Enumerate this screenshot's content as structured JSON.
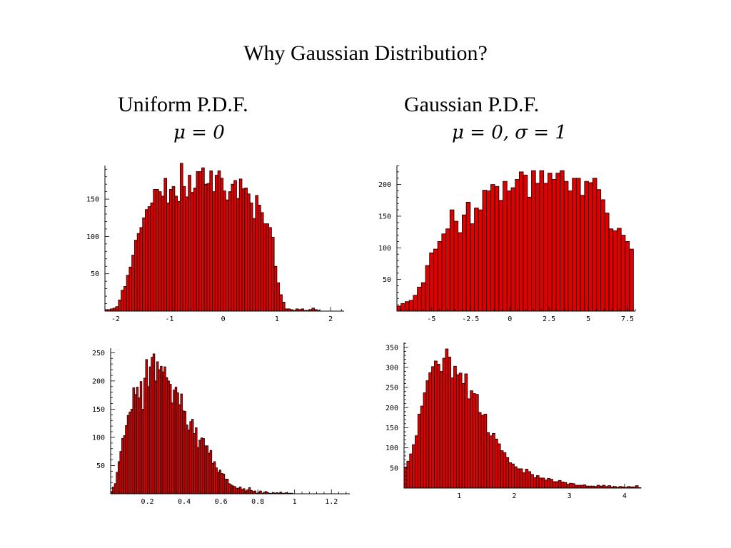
{
  "slide": {
    "title": "Why Gaussian Distribution?"
  },
  "columns": [
    {
      "title": "Uniform P.D.F.",
      "param": "μ = 0"
    },
    {
      "title": "Gaussian P.D.F.",
      "param": "μ = 0, σ = 1"
    }
  ],
  "colors": {
    "bar_fill": "#e00000",
    "bar_stroke": "#000000"
  },
  "chart_data": [
    {
      "id": "top-left",
      "type": "bar",
      "xlim": [
        -2.2,
        2.25
      ],
      "ylim": [
        0,
        195
      ],
      "xticks": [
        -2,
        -1,
        0,
        1,
        2
      ],
      "xtick_labels": [
        "-2",
        "-1",
        "0",
        "1",
        "2"
      ],
      "yticks": [
        50,
        100,
        150
      ],
      "ytick_labels": [
        "50",
        "100",
        "150"
      ],
      "bin_start": -2.2,
      "bin_width": 0.05,
      "values": [
        2,
        2,
        3,
        4,
        6,
        15,
        28,
        33,
        48,
        59,
        75,
        95,
        104,
        112,
        125,
        136,
        140,
        145,
        163,
        163,
        160,
        154,
        178,
        145,
        163,
        167,
        154,
        147,
        198,
        167,
        153,
        182,
        159,
        165,
        187,
        187,
        192,
        170,
        171,
        188,
        160,
        182,
        188,
        178,
        161,
        149,
        160,
        170,
        175,
        151,
        177,
        164,
        165,
        157,
        145,
        124,
        155,
        142,
        132,
        117,
        117,
        112,
        99,
        60,
        38,
        22,
        12,
        3,
        3,
        2,
        1,
        3,
        2,
        3,
        1,
        1,
        2,
        4,
        2,
        1
      ]
    },
    {
      "id": "top-right",
      "type": "bar",
      "xlim": [
        -7.2,
        8.0
      ],
      "ylim": [
        0,
        230
      ],
      "xticks": [
        -5,
        -2.5,
        0,
        2.5,
        5,
        7.5
      ],
      "xtick_labels": [
        "-5",
        "-2.5",
        "0",
        "2.5",
        "5",
        "7.5"
      ],
      "yticks": [
        50,
        100,
        150,
        200
      ],
      "ytick_labels": [
        "50",
        "100",
        "150",
        "200"
      ],
      "bin_start": -7.2,
      "bin_width": 0.26,
      "values": [
        8,
        12,
        15,
        17,
        25,
        38,
        45,
        72,
        92,
        98,
        110,
        122,
        130,
        160,
        142,
        124,
        152,
        172,
        138,
        163,
        160,
        191,
        190,
        200,
        197,
        175,
        205,
        190,
        195,
        208,
        220,
        215,
        180,
        222,
        202,
        222,
        202,
        218,
        208,
        218,
        222,
        205,
        190,
        210,
        210,
        183,
        205,
        203,
        210,
        192,
        176,
        155,
        130,
        127,
        131,
        120,
        110,
        98,
        96,
        65,
        53,
        35,
        25,
        22,
        8,
        5,
        5,
        3,
        2,
        1,
        2,
        3,
        2
      ]
    },
    {
      "id": "bottom-left",
      "type": "bar",
      "xlim": [
        0.0,
        1.3
      ],
      "ylim": [
        0,
        258
      ],
      "xticks": [
        0.2,
        0.4,
        0.6,
        0.8,
        1,
        1.2
      ],
      "xtick_labels": [
        "0.2",
        "0.4",
        "0.6",
        "0.8",
        "1",
        "1.2"
      ],
      "yticks": [
        50,
        100,
        150,
        200,
        250
      ],
      "ytick_labels": [
        "50",
        "100",
        "150",
        "200",
        "250"
      ],
      "bin_start": 0.0,
      "bin_width": 0.01,
      "values": [
        4,
        12,
        18,
        38,
        57,
        75,
        98,
        103,
        121,
        139,
        145,
        150,
        188,
        176,
        189,
        170,
        199,
        150,
        205,
        238,
        190,
        225,
        242,
        248,
        200,
        234,
        220,
        226,
        216,
        225,
        206,
        200,
        194,
        161,
        184,
        189,
        179,
        158,
        177,
        147,
        146,
        122,
        113,
        128,
        132,
        107,
        117,
        82,
        95,
        99,
        98,
        85,
        85,
        72,
        77,
        54,
        57,
        46,
        38,
        42,
        36,
        35,
        26,
        26,
        18,
        16,
        14,
        13,
        10,
        10,
        12,
        8,
        9,
        5,
        7,
        11,
        6,
        4,
        5,
        1,
        3,
        5,
        1,
        3,
        4,
        2,
        1,
        1,
        2,
        1,
        2,
        1,
        3,
        1,
        1,
        2,
        1,
        1,
        1
      ]
    },
    {
      "id": "bottom-right",
      "type": "bar",
      "xlim": [
        0.0,
        4.3
      ],
      "ylim": [
        0,
        362
      ],
      "xticks": [
        1,
        2,
        3,
        4
      ],
      "xtick_labels": [
        "1",
        "2",
        "3",
        "4"
      ],
      "yticks": [
        50,
        100,
        150,
        200,
        250,
        300,
        350
      ],
      "ytick_labels": [
        "50",
        "100",
        "150",
        "200",
        "250",
        "300",
        "350"
      ],
      "bin_start": 0.0,
      "bin_width": 0.05,
      "values": [
        52,
        67,
        85,
        108,
        130,
        184,
        204,
        237,
        267,
        287,
        302,
        316,
        308,
        290,
        323,
        346,
        326,
        274,
        303,
        282,
        286,
        260,
        284,
        222,
        242,
        235,
        233,
        188,
        181,
        184,
        138,
        130,
        136,
        122,
        110,
        93,
        88,
        76,
        63,
        60,
        53,
        48,
        48,
        38,
        47,
        41,
        34,
        26,
        31,
        25,
        25,
        20,
        24,
        22,
        16,
        16,
        19,
        15,
        14,
        10,
        12,
        11,
        7,
        7,
        7,
        8,
        5,
        5,
        5,
        4,
        7,
        5,
        7,
        4,
        6,
        3,
        4,
        2,
        4,
        3,
        2,
        4,
        3,
        3,
        6,
        1
      ]
    }
  ]
}
